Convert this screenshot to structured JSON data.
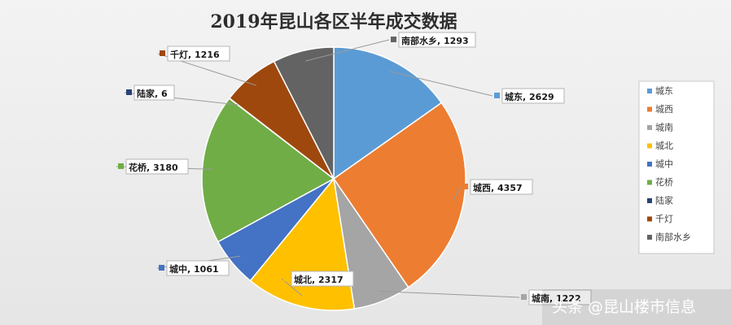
{
  "chart_data": {
    "type": "pie",
    "title": "2019年昆山各区半年成交数据",
    "slices": [
      {
        "name": "城东",
        "value": 2629,
        "label": "城东, 2629",
        "color": "#5b9bd5"
      },
      {
        "name": "城西",
        "value": 4357,
        "label": "城西, 4357",
        "color": "#ed7d31"
      },
      {
        "name": "城南",
        "value": 1222,
        "label": "城南, 1222",
        "color": "#a5a5a5"
      },
      {
        "name": "城北",
        "value": 2317,
        "label": "城北, 2317",
        "color": "#ffc000"
      },
      {
        "name": "城中",
        "value": 1061,
        "label": "城中, 1061",
        "color": "#4472c4"
      },
      {
        "name": "花桥",
        "value": 3180,
        "label": "花桥, 3180",
        "color": "#70ad47"
      },
      {
        "name": "陆家",
        "value": 6,
        "label": "陆家, 6",
        "color": "#264478"
      },
      {
        "name": "千灯",
        "value": 1216,
        "label": "千灯, 1216",
        "color": "#9e480e"
      },
      {
        "name": "南部水乡",
        "value": 1293,
        "label": "南部水乡, 1293",
        "color": "#636363"
      }
    ],
    "legend_placement": "right"
  },
  "watermark": "头条 @昆山楼市信息"
}
